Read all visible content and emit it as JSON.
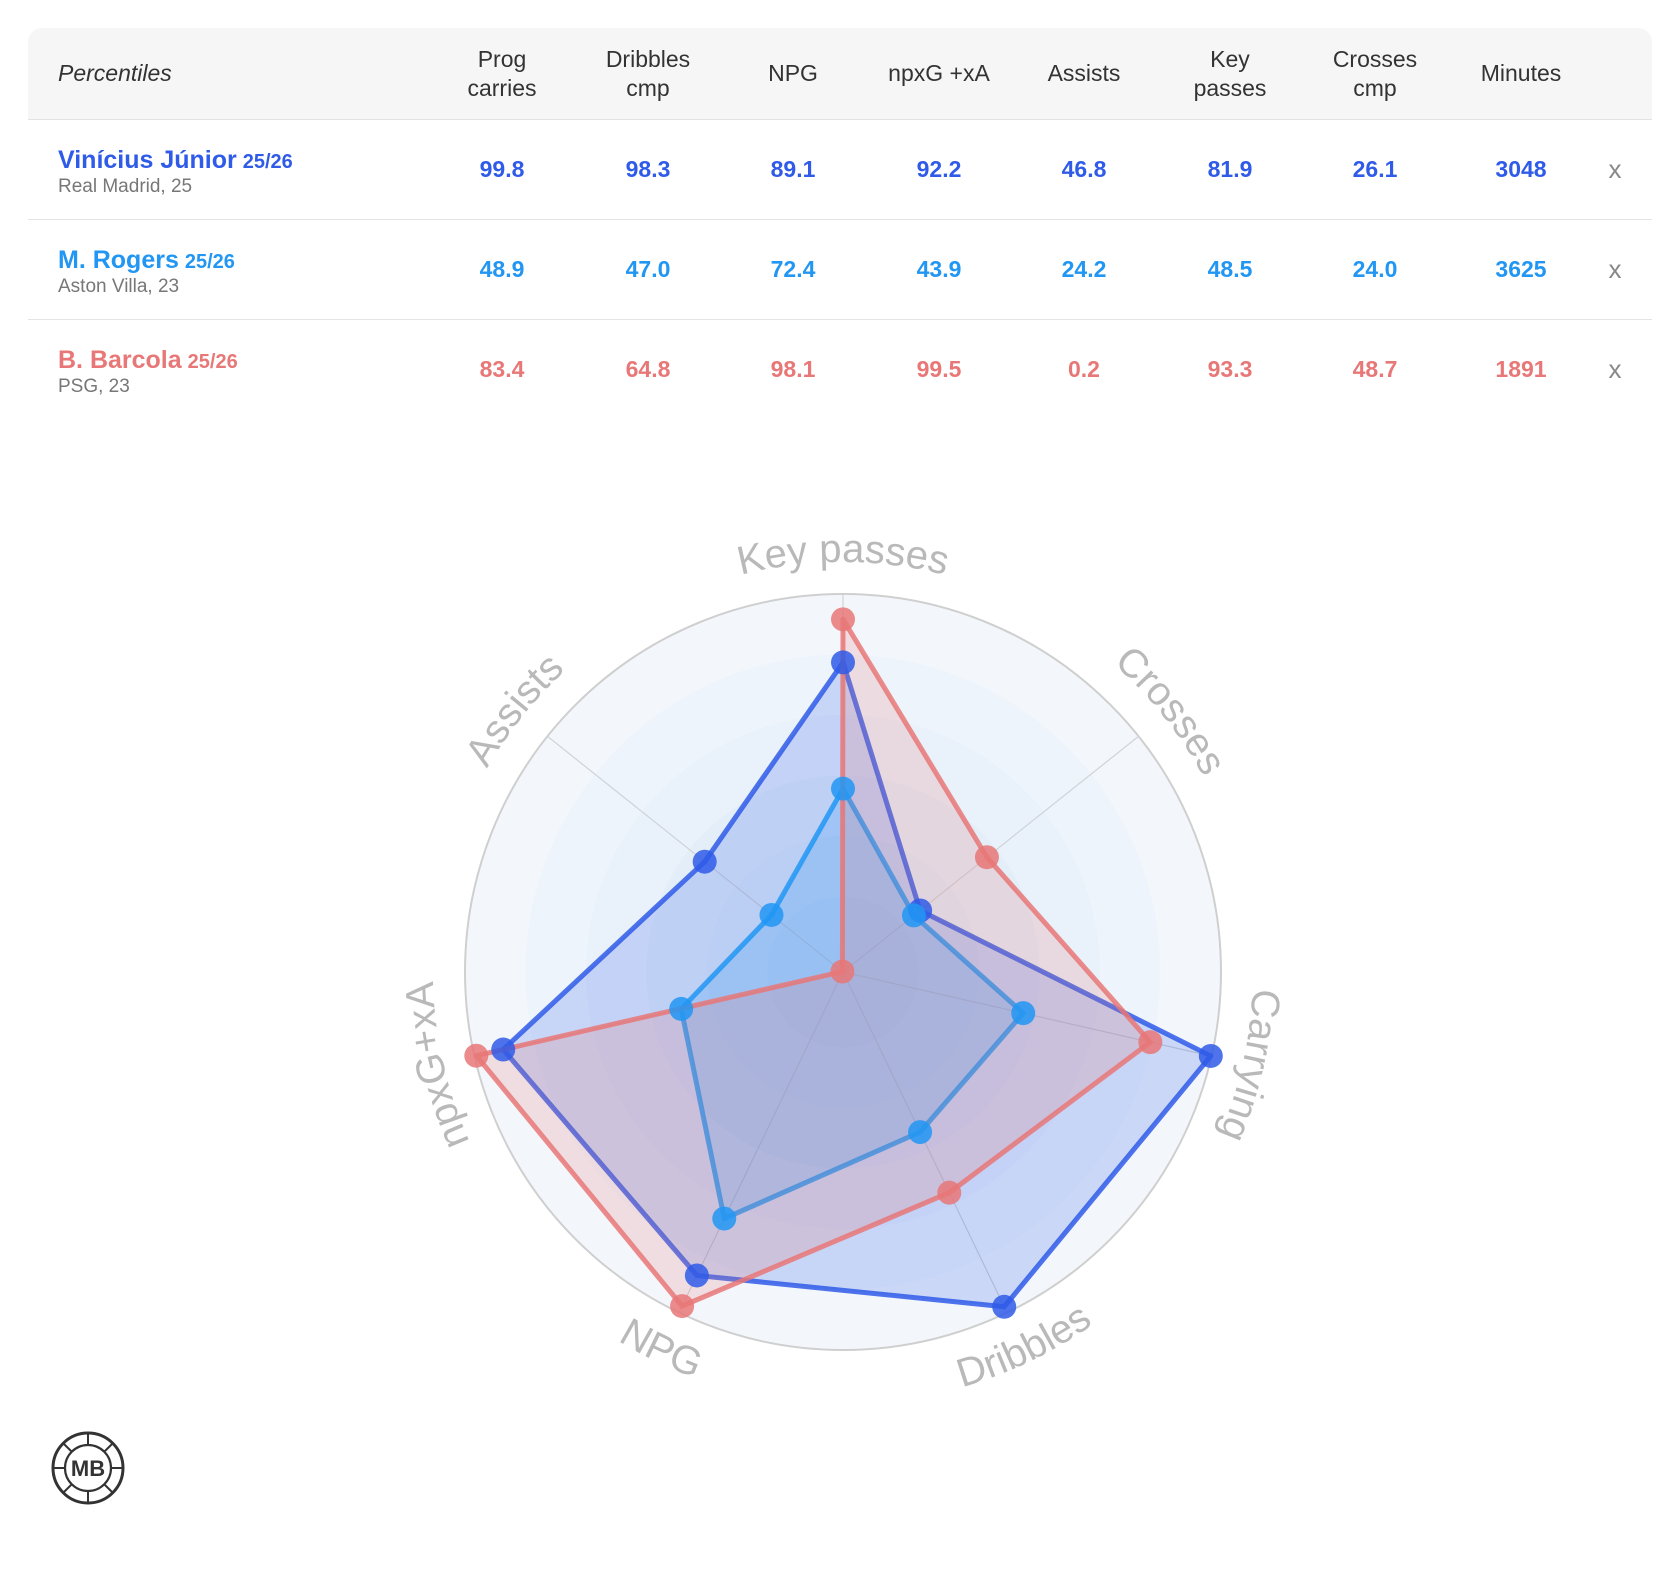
{
  "table": {
    "corner_label": "Percentiles",
    "columns": [
      "Prog\ncarries",
      "Dribbles\ncmp",
      "NPG",
      "npxG +xA",
      "Assists",
      "Key\npasses",
      "Crosses\ncmp",
      "Minutes"
    ],
    "remove_label": "x",
    "rows": [
      {
        "name": "Vinícius Júnior",
        "season": "25/26",
        "team": "Real Madrid, 25",
        "color": "#2f5be8",
        "values": [
          "99.8",
          "98.3",
          "89.1",
          "92.2",
          "46.8",
          "81.9",
          "26.1",
          "3048"
        ]
      },
      {
        "name": "M. Rogers",
        "season": "25/26",
        "team": "Aston Villa, 23",
        "color": "#2196f3",
        "values": [
          "48.9",
          "47.0",
          "72.4",
          "43.9",
          "24.2",
          "48.5",
          "24.0",
          "3625"
        ]
      },
      {
        "name": "B. Barcola",
        "season": "25/26",
        "team": "PSG, 23",
        "color": "#e87777",
        "values": [
          "83.4",
          "64.8",
          "98.1",
          "99.5",
          "0.2",
          "93.3",
          "48.7",
          "1891"
        ]
      }
    ]
  },
  "chart_data": {
    "type": "radar",
    "axes": [
      "Key passes",
      "Crosses",
      "Carrying",
      "Dribbles",
      "NPG",
      "npxG+xA",
      "Assists"
    ],
    "range": [
      0,
      100
    ],
    "series": [
      {
        "name": "Vinícius Júnior",
        "color": "#2f5be8",
        "values": [
          81.9,
          26.1,
          99.8,
          98.3,
          89.1,
          92.2,
          46.8
        ]
      },
      {
        "name": "M. Rogers",
        "color": "#2196f3",
        "values": [
          48.5,
          24.0,
          48.9,
          47.0,
          72.4,
          43.9,
          24.2
        ]
      },
      {
        "name": "B. Barcola",
        "color": "#e87777",
        "values": [
          93.3,
          48.7,
          83.4,
          64.8,
          98.1,
          99.5,
          0.2
        ]
      }
    ]
  },
  "logo": {
    "text": "MB",
    "name": "mb-logo"
  }
}
